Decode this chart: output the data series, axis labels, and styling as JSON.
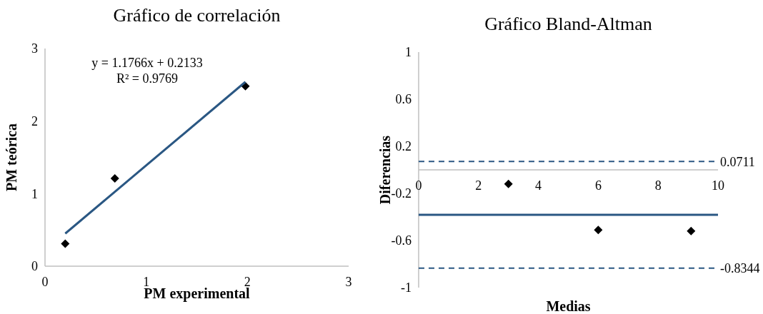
{
  "chart_data": [
    {
      "type": "scatter",
      "title": "Gráfico de correlación",
      "xlabel": "PM experimental",
      "ylabel": "PM teórica",
      "xlim": [
        0,
        3
      ],
      "ylim": [
        0,
        3
      ],
      "xticks": [
        0,
        1,
        2,
        3
      ],
      "yticks": [
        0,
        1,
        2,
        3
      ],
      "grid": false,
      "annotations": [
        "y = 1.1766x + 0.2133",
        "R² = 0.9769"
      ],
      "series": [
        {
          "color": "#000000",
          "marker": "diamond",
          "x": [
            0.2,
            0.69,
            1.98
          ],
          "values": [
            0.31,
            1.21,
            2.48
          ]
        },
        {
          "type": "line",
          "color": "#2a5783",
          "x": [
            0.2,
            1.98
          ],
          "values": [
            0.45,
            2.54
          ]
        }
      ]
    },
    {
      "type": "scatter",
      "title": "Gráfico Bland-Altman",
      "xlabel": "Medias",
      "ylabel": "Diferencias",
      "xlim": [
        0,
        10
      ],
      "ylim": [
        -1,
        1
      ],
      "xticks": [
        0,
        2,
        4,
        6,
        8,
        10
      ],
      "yticks": [
        -1,
        -0.6,
        -0.2,
        0.2,
        0.6,
        1
      ],
      "marker": "diamond",
      "grid": false,
      "ref_lines": [
        {
          "axis": "y",
          "value": 0.0711,
          "label": "0.0711",
          "color": "#2a5783",
          "line_style": "dashed"
        },
        {
          "axis": "y",
          "value": -0.3817,
          "color": "#2a5783",
          "line_style": "solid"
        },
        {
          "axis": "y",
          "value": -0.8344,
          "label": "-0.8344",
          "color": "#2a5783",
          "line_style": "dashed"
        }
      ],
      "series": [
        {
          "color": "#000000",
          "x": [
            3.0,
            6.0,
            9.1
          ],
          "values": [
            -0.12,
            -0.51,
            -0.52
          ]
        }
      ]
    }
  ]
}
